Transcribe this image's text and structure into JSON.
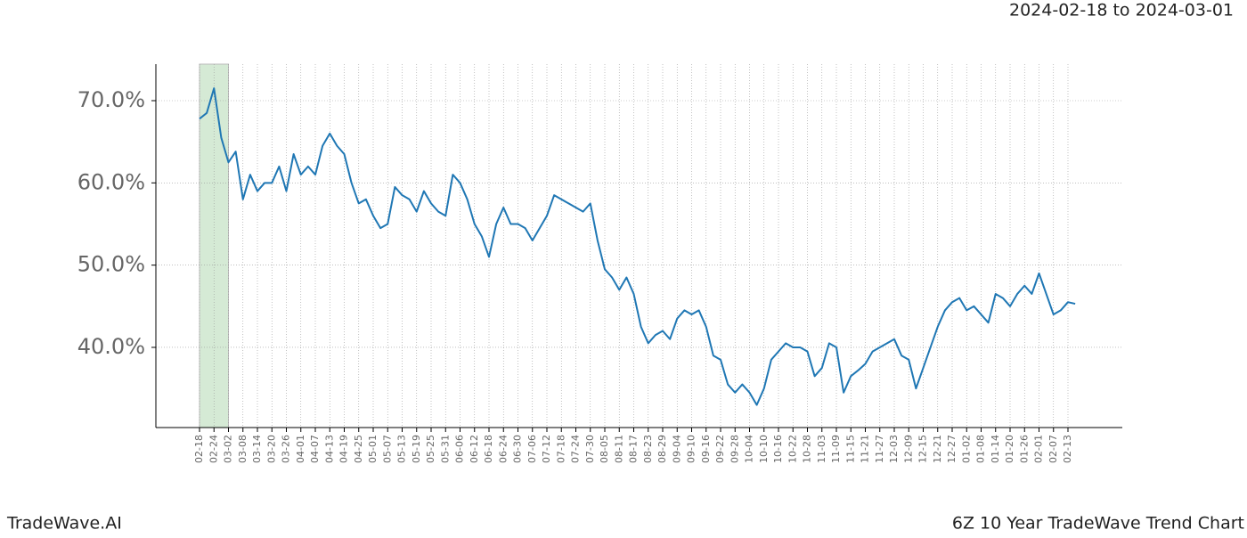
{
  "chart_data": {
    "type": "line",
    "date_range": "2024-02-18 to 2024-03-01",
    "watermark": "TradeWave.AI",
    "footer": "6Z 10 Year TradeWave Trend Chart",
    "categories": [
      "02-18",
      null,
      "02-24",
      null,
      "03-02",
      null,
      "03-08",
      null,
      "03-14",
      null,
      "03-20",
      null,
      "03-26",
      null,
      "04-01",
      null,
      "04-07",
      null,
      "04-13",
      null,
      "04-19",
      null,
      "04-25",
      null,
      "05-01",
      null,
      "05-07",
      null,
      "05-13",
      null,
      "05-19",
      null,
      "05-25",
      null,
      "05-31",
      null,
      "06-06",
      null,
      "06-12",
      null,
      "06-18",
      null,
      "06-24",
      null,
      "06-30",
      null,
      "07-06",
      null,
      "07-12",
      null,
      "07-18",
      null,
      "07-24",
      null,
      "07-30",
      null,
      "08-05",
      null,
      "08-11",
      null,
      "08-17",
      null,
      "08-23",
      null,
      "08-29",
      null,
      "09-04",
      null,
      "09-10",
      null,
      "09-16",
      null,
      "09-22",
      null,
      "09-28",
      null,
      "10-04",
      null,
      "10-10",
      null,
      "10-16",
      null,
      "10-22",
      null,
      "10-28",
      null,
      "11-03",
      null,
      "11-09",
      null,
      "11-15",
      null,
      "11-21",
      null,
      "11-27",
      null,
      "12-03",
      null,
      "12-09",
      null,
      "12-15",
      null,
      "12-21",
      null,
      "12-27",
      null,
      "01-02",
      null,
      "01-08",
      null,
      "01-14",
      null,
      "01-20",
      null,
      "01-26",
      null,
      "02-01",
      null,
      "02-07",
      null,
      "02-13",
      null
    ],
    "values": [
      67.8,
      68.5,
      71.5,
      65.5,
      62.5,
      63.8,
      58,
      61,
      59,
      60,
      60,
      62,
      59,
      63.5,
      61,
      62,
      61,
      64.5,
      66,
      64.5,
      63.5,
      60,
      57.5,
      58,
      56,
      54.5,
      55,
      59.5,
      58.5,
      58,
      56.5,
      59,
      57.5,
      56.5,
      56,
      61,
      60,
      58,
      55,
      53.5,
      51,
      55,
      57,
      55,
      55,
      54.5,
      53,
      54.5,
      56,
      58.5,
      58,
      57.5,
      57,
      56.5,
      57.5,
      53,
      49.5,
      48.5,
      47,
      48.5,
      46.5,
      42.5,
      40.5,
      41.5,
      42,
      41,
      43.5,
      44.5,
      44,
      44.5,
      42.5,
      39,
      38.5,
      35.5,
      34.5,
      35.5,
      34.5,
      33,
      35,
      38.5,
      39.5,
      40.5,
      40,
      40,
      39.5,
      36.5,
      37.5,
      40.5,
      40,
      34.5,
      36.5,
      37.2,
      38,
      39.5,
      40,
      40.5,
      41,
      39,
      38.5,
      35,
      37.5,
      40,
      42.5,
      44.5,
      45.5,
      46,
      44.5,
      45,
      44,
      43,
      46.5,
      46,
      45,
      46.5,
      47.5,
      46.5,
      49,
      46.5,
      44,
      44.5,
      45.5,
      45.3
    ],
    "color": "#1f77b4",
    "highlight_color": "#d5ead5",
    "ylim": [
      30.25,
      74.44
    ],
    "yticks": [
      {
        "value": 40,
        "label": "40.0%"
      },
      {
        "value": 50,
        "label": "50.0%"
      },
      {
        "value": 60,
        "label": "60.0%"
      },
      {
        "value": 70,
        "label": "70.0%"
      }
    ],
    "grid": true
  }
}
